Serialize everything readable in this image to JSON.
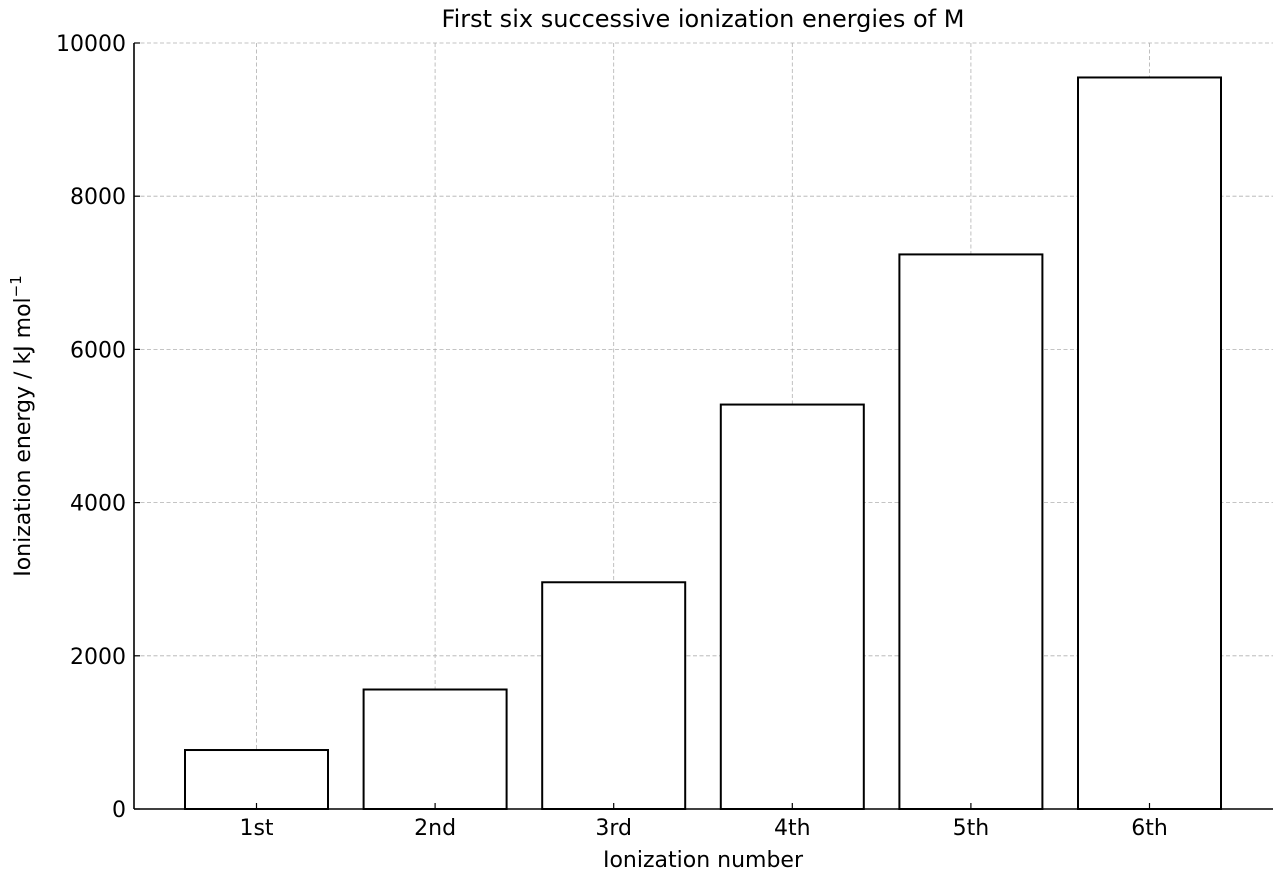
{
  "chart_data": {
    "type": "bar",
    "title": "First six successive ionization energies of M",
    "xlabel": "Ionization number",
    "ylabel": "Ionization energy / kJ mol",
    "ylabel_superscript": "−1",
    "categories": [
      "1st",
      "2nd",
      "3rd",
      "4th",
      "5th",
      "6th"
    ],
    "values": [
      770,
      1560,
      2960,
      5280,
      7240,
      9550
    ],
    "ylim": [
      0,
      10000
    ],
    "yticks": [
      0,
      2000,
      4000,
      6000,
      8000,
      10000
    ],
    "ytick_labels": [
      "0",
      "2000",
      "4000",
      "6000",
      "8000",
      "10000"
    ],
    "grid": true,
    "bar_fill": "#ffffff",
    "bar_edge": "#000000",
    "grid_color": "#b0b0b0"
  }
}
